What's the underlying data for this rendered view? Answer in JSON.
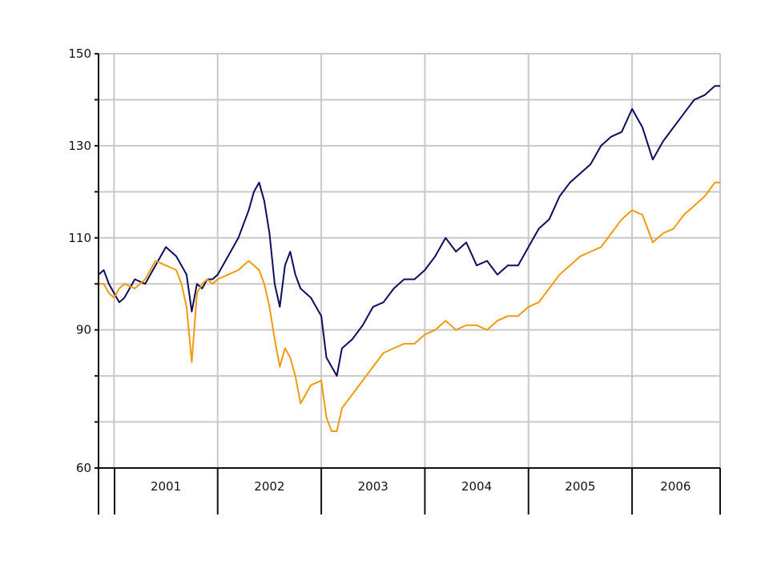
{
  "chart_data": {
    "type": "line",
    "title": "",
    "xlabel": "",
    "ylabel": "",
    "ylim": [
      60,
      150
    ],
    "xlim": [
      2000.85,
      2006.85
    ],
    "grid": true,
    "legend": "none",
    "y_ticks": [
      60,
      90,
      110,
      130,
      150
    ],
    "y_gridlines": [
      70,
      80,
      90,
      100,
      110,
      120,
      130,
      140,
      150
    ],
    "x_year_boundaries": [
      2001,
      2002,
      2003,
      2004,
      2005,
      2006,
      2006.85
    ],
    "x_year_labels": [
      {
        "label": "2001",
        "x": 2001.5
      },
      {
        "label": "2002",
        "x": 2002.5
      },
      {
        "label": "2003",
        "x": 2003.5
      },
      {
        "label": "2004",
        "x": 2004.5
      },
      {
        "label": "2005",
        "x": 2005.5
      },
      {
        "label": "2006",
        "x": 2006.42
      }
    ],
    "colors": {
      "grid": "#c8c8c8",
      "axis": "#111111"
    },
    "series": [
      {
        "color": "#0d0d5c",
        "x": [
          2000.85,
          2000.9,
          2000.95,
          2001.0,
          2001.05,
          2001.1,
          2001.2,
          2001.3,
          2001.4,
          2001.5,
          2001.6,
          2001.65,
          2001.7,
          2001.75,
          2001.8,
          2001.85,
          2001.9,
          2001.95,
          2002.0,
          2002.1,
          2002.2,
          2002.3,
          2002.35,
          2002.4,
          2002.45,
          2002.5,
          2002.55,
          2002.6,
          2002.65,
          2002.7,
          2002.75,
          2002.8,
          2002.9,
          2003.0,
          2003.05,
          2003.1,
          2003.15,
          2003.2,
          2003.3,
          2003.4,
          2003.5,
          2003.6,
          2003.7,
          2003.8,
          2003.9,
          2004.0,
          2004.1,
          2004.2,
          2004.3,
          2004.4,
          2004.5,
          2004.6,
          2004.7,
          2004.8,
          2004.9,
          2005.0,
          2005.1,
          2005.2,
          2005.3,
          2005.4,
          2005.5,
          2005.6,
          2005.7,
          2005.8,
          2005.9,
          2006.0,
          2006.1,
          2006.2,
          2006.3,
          2006.4,
          2006.5,
          2006.6,
          2006.7,
          2006.8,
          2006.85
        ],
        "y": [
          102,
          103,
          100,
          98,
          96,
          97,
          101,
          100,
          104,
          108,
          106,
          104,
          102,
          94,
          100,
          99,
          101,
          101,
          102,
          106,
          110,
          116,
          120,
          122,
          118,
          111,
          100,
          95,
          104,
          107,
          102,
          99,
          97,
          93,
          84,
          82,
          80,
          86,
          88,
          91,
          95,
          96,
          99,
          101,
          101,
          103,
          106,
          110,
          107,
          109,
          104,
          105,
          102,
          104,
          104,
          108,
          112,
          114,
          119,
          122,
          124,
          126,
          130,
          132,
          133,
          138,
          134,
          127,
          131,
          134,
          137,
          140,
          141,
          143,
          143
        ]
      },
      {
        "color": "#f29a0f",
        "x": [
          2000.85,
          2000.9,
          2000.95,
          2001.0,
          2001.05,
          2001.1,
          2001.2,
          2001.3,
          2001.4,
          2001.5,
          2001.6,
          2001.65,
          2001.7,
          2001.75,
          2001.8,
          2001.85,
          2001.9,
          2001.95,
          2002.0,
          2002.1,
          2002.2,
          2002.3,
          2002.35,
          2002.4,
          2002.45,
          2002.5,
          2002.55,
          2002.6,
          2002.65,
          2002.7,
          2002.75,
          2002.8,
          2002.9,
          2003.0,
          2003.05,
          2003.1,
          2003.15,
          2003.2,
          2003.3,
          2003.4,
          2003.5,
          2003.6,
          2003.7,
          2003.8,
          2003.9,
          2004.0,
          2004.1,
          2004.2,
          2004.3,
          2004.4,
          2004.5,
          2004.6,
          2004.7,
          2004.8,
          2004.9,
          2005.0,
          2005.1,
          2005.2,
          2005.3,
          2005.4,
          2005.5,
          2005.6,
          2005.7,
          2005.8,
          2005.9,
          2006.0,
          2006.1,
          2006.2,
          2006.3,
          2006.4,
          2006.5,
          2006.6,
          2006.7,
          2006.8,
          2006.85
        ],
        "y": [
          100,
          100,
          98,
          97,
          99,
          100,
          99,
          101,
          105,
          104,
          103,
          100,
          95,
          83,
          98,
          100,
          101,
          100,
          101,
          102,
          103,
          105,
          104,
          103,
          100,
          95,
          88,
          82,
          86,
          84,
          80,
          74,
          78,
          79,
          71,
          68,
          68,
          73,
          76,
          79,
          82,
          85,
          86,
          87,
          87,
          89,
          90,
          92,
          90,
          91,
          91,
          90,
          92,
          93,
          93,
          95,
          96,
          99,
          102,
          104,
          106,
          107,
          108,
          111,
          114,
          116,
          115,
          109,
          111,
          112,
          115,
          117,
          119,
          122,
          122
        ]
      }
    ]
  }
}
